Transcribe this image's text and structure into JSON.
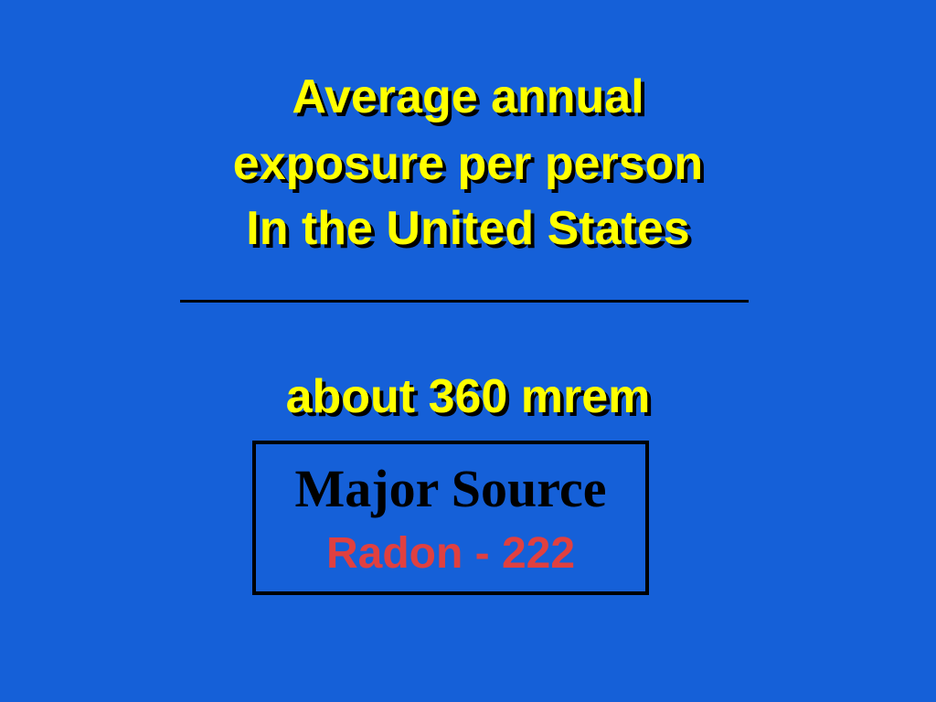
{
  "slide": {
    "title_lines": [
      "Average annual",
      "exposure per person",
      "In the United States"
    ],
    "answer": "about 360 mrem",
    "box": {
      "heading": "Major Source",
      "source": "Radon - 222"
    },
    "colors": {
      "background": "#1560d8",
      "title": "#ffff00",
      "source": "#e04040"
    }
  }
}
